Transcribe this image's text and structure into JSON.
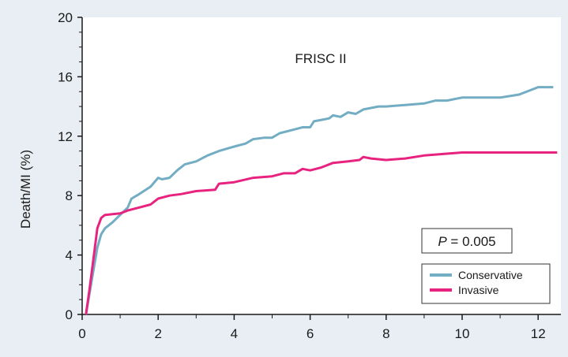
{
  "chart_data": {
    "type": "line",
    "title": "",
    "annotation": "FRISC II",
    "xlabel": "",
    "ylabel": "Death/MI (%)",
    "xlim": [
      0,
      12.5
    ],
    "ylim": [
      0,
      20
    ],
    "x_ticks": [
      0,
      2,
      4,
      6,
      8,
      10,
      12
    ],
    "y_ticks": [
      0,
      4,
      8,
      12,
      16,
      20
    ],
    "grid": false,
    "legend_position": "bottom-right",
    "stat_box": {
      "italic": "P",
      "rest": " = 0.005"
    },
    "series": [
      {
        "name": "Conservative",
        "color": "#72adc3",
        "points": [
          [
            0.1,
            0
          ],
          [
            0.2,
            1.5
          ],
          [
            0.3,
            3
          ],
          [
            0.4,
            4.5
          ],
          [
            0.5,
            5.4
          ],
          [
            0.6,
            5.8
          ],
          [
            0.8,
            6.2
          ],
          [
            1.0,
            6.7
          ],
          [
            1.2,
            7.2
          ],
          [
            1.3,
            7.8
          ],
          [
            1.5,
            8.1
          ],
          [
            1.8,
            8.6
          ],
          [
            2.0,
            9.2
          ],
          [
            2.1,
            9.1
          ],
          [
            2.3,
            9.2
          ],
          [
            2.5,
            9.7
          ],
          [
            2.7,
            10.1
          ],
          [
            3.0,
            10.3
          ],
          [
            3.3,
            10.7
          ],
          [
            3.6,
            11.0
          ],
          [
            4.0,
            11.3
          ],
          [
            4.3,
            11.5
          ],
          [
            4.5,
            11.8
          ],
          [
            4.8,
            11.9
          ],
          [
            5.0,
            11.9
          ],
          [
            5.2,
            12.2
          ],
          [
            5.5,
            12.4
          ],
          [
            5.8,
            12.6
          ],
          [
            6.0,
            12.6
          ],
          [
            6.1,
            13.0
          ],
          [
            6.3,
            13.1
          ],
          [
            6.5,
            13.2
          ],
          [
            6.6,
            13.4
          ],
          [
            6.8,
            13.3
          ],
          [
            7.0,
            13.6
          ],
          [
            7.2,
            13.5
          ],
          [
            7.4,
            13.8
          ],
          [
            7.6,
            13.9
          ],
          [
            7.8,
            14.0
          ],
          [
            8.0,
            14.0
          ],
          [
            8.5,
            14.1
          ],
          [
            9.0,
            14.2
          ],
          [
            9.3,
            14.4
          ],
          [
            9.6,
            14.4
          ],
          [
            10.0,
            14.6
          ],
          [
            10.5,
            14.6
          ],
          [
            11.0,
            14.6
          ],
          [
            11.5,
            14.8
          ],
          [
            12.0,
            15.3
          ],
          [
            12.4,
            15.3
          ]
        ]
      },
      {
        "name": "Invasive",
        "color": "#e8237f",
        "points": [
          [
            0.1,
            0
          ],
          [
            0.2,
            1.8
          ],
          [
            0.3,
            3.8
          ],
          [
            0.4,
            5.8
          ],
          [
            0.5,
            6.5
          ],
          [
            0.6,
            6.7
          ],
          [
            1.0,
            6.8
          ],
          [
            1.2,
            7.0
          ],
          [
            1.5,
            7.2
          ],
          [
            1.8,
            7.4
          ],
          [
            2.0,
            7.8
          ],
          [
            2.3,
            8.0
          ],
          [
            2.6,
            8.1
          ],
          [
            3.0,
            8.3
          ],
          [
            3.5,
            8.4
          ],
          [
            3.6,
            8.8
          ],
          [
            4.0,
            8.9
          ],
          [
            4.5,
            9.2
          ],
          [
            5.0,
            9.3
          ],
          [
            5.3,
            9.5
          ],
          [
            5.6,
            9.5
          ],
          [
            5.8,
            9.8
          ],
          [
            6.0,
            9.7
          ],
          [
            6.3,
            9.9
          ],
          [
            6.6,
            10.2
          ],
          [
            7.0,
            10.3
          ],
          [
            7.3,
            10.4
          ],
          [
            7.4,
            10.6
          ],
          [
            7.6,
            10.5
          ],
          [
            8.0,
            10.4
          ],
          [
            8.5,
            10.5
          ],
          [
            9.0,
            10.7
          ],
          [
            9.5,
            10.8
          ],
          [
            10.0,
            10.9
          ],
          [
            10.5,
            10.9
          ],
          [
            11.0,
            10.9
          ],
          [
            11.5,
            10.9
          ],
          [
            12.0,
            10.9
          ],
          [
            12.5,
            10.9
          ]
        ]
      }
    ]
  }
}
